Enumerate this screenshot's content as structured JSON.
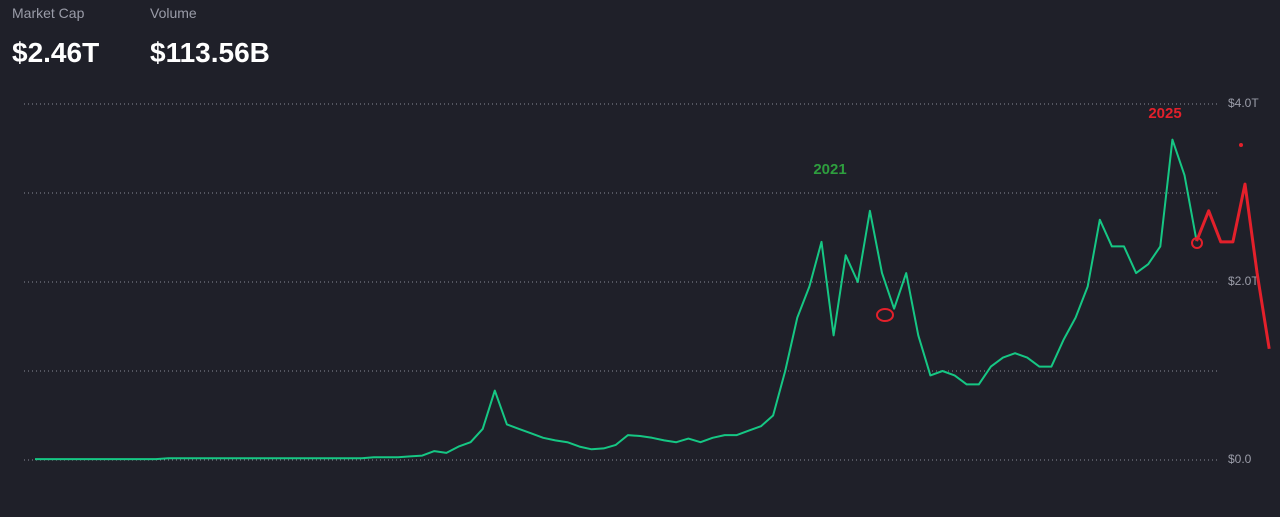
{
  "stats": [
    {
      "label": "Market Cap",
      "value": "$2.46T"
    },
    {
      "label": "Volume",
      "value": "$113.56B"
    }
  ],
  "chart_data": {
    "type": "line",
    "series": [
      {
        "name": null,
        "color": "#16c784",
        "values": [
          0.01,
          0.01,
          0.01,
          0.01,
          0.01,
          0.01,
          0.01,
          0.01,
          0.01,
          0.01,
          0.01,
          0.02,
          0.02,
          0.02,
          0.02,
          0.02,
          0.02,
          0.02,
          0.02,
          0.02,
          0.02,
          0.02,
          0.02,
          0.02,
          0.02,
          0.02,
          0.02,
          0.02,
          0.03,
          0.03,
          0.03,
          0.04,
          0.05,
          0.1,
          0.08,
          0.15,
          0.2,
          0.35,
          0.78,
          0.4,
          0.35,
          0.3,
          0.25,
          0.22,
          0.2,
          0.15,
          0.12,
          0.13,
          0.17,
          0.28,
          0.27,
          0.25,
          0.22,
          0.2,
          0.24,
          0.2,
          0.25,
          0.28,
          0.28,
          0.33,
          0.38,
          0.5,
          1.0,
          1.6,
          1.95,
          2.45,
          1.4,
          2.3,
          2.0,
          2.8,
          2.1,
          1.7,
          2.1,
          1.4,
          0.95,
          1.0,
          0.95,
          0.85,
          0.85,
          1.05,
          1.15,
          1.2,
          1.15,
          1.05,
          1.05,
          1.35,
          1.6,
          1.95,
          2.7,
          2.4,
          2.4,
          2.1,
          2.2,
          2.4,
          3.6,
          3.2,
          2.46,
          null,
          null,
          null,
          null,
          null,
          null
        ]
      },
      {
        "name": null,
        "color": "#e3202b",
        "values": [
          null,
          null,
          null,
          null,
          null,
          null,
          null,
          null,
          null,
          null,
          null,
          null,
          null,
          null,
          null,
          null,
          null,
          null,
          null,
          null,
          null,
          null,
          null,
          null,
          null,
          null,
          null,
          null,
          null,
          null,
          null,
          null,
          null,
          null,
          null,
          null,
          null,
          null,
          null,
          null,
          null,
          null,
          null,
          null,
          null,
          null,
          null,
          null,
          null,
          null,
          null,
          null,
          null,
          null,
          null,
          null,
          null,
          null,
          null,
          null,
          null,
          null,
          null,
          null,
          null,
          null,
          null,
          null,
          null,
          null,
          null,
          null,
          null,
          null,
          null,
          null,
          null,
          null,
          null,
          null,
          null,
          null,
          null,
          null,
          null,
          null,
          null,
          null,
          null,
          null,
          null,
          null,
          null,
          null,
          null,
          null,
          2.46,
          2.8,
          2.45,
          2.45,
          3.1,
          2.1,
          1.25
        ]
      }
    ],
    "ylim": [
      0,
      4
    ],
    "yticks": [
      {
        "value": 0,
        "label": "$0.0"
      },
      {
        "value": 2,
        "label": "$2.0T"
      },
      {
        "value": 4,
        "label": "$4.0T"
      }
    ],
    "gridlines": [
      0,
      1,
      2,
      3,
      4
    ],
    "annotations": [
      {
        "text": "2021",
        "color": "#2e9e3e"
      },
      {
        "text": "2025",
        "color": "#e3202b"
      }
    ]
  }
}
